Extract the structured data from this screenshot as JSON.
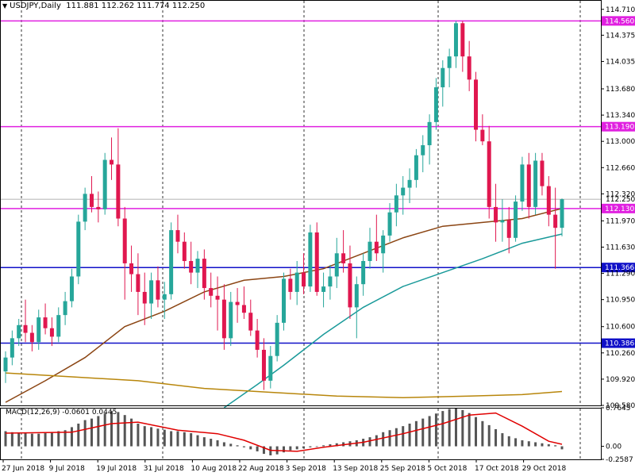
{
  "header": {
    "symbol": "USDJPY,Daily",
    "ohlc": "111.881 112.262 111.774 112.250"
  },
  "macd_label": "MACD(12,26,9) -0.0601 0.0445",
  "colors": {
    "bull": "#26a69a",
    "bear": "#e0174f",
    "ma_short": "#8b4513",
    "ma_mid": "#1a9a9a",
    "ma_long": "#b8860b",
    "macd_signal": "#e00000",
    "macd_hist": "#555555",
    "level_magenta": "#e020e0",
    "level_blue": "#1010c8"
  },
  "chart_data": {
    "type": "candlestick",
    "price_axis": {
      "ticks": [
        "114.710",
        "114.375",
        "114.035",
        "113.680",
        "113.340",
        "113.000",
        "112.660",
        "112.320",
        "111.970",
        "111.630",
        "111.290",
        "110.950",
        "110.600",
        "110.260",
        "109.920",
        "109.580"
      ],
      "range": [
        109.58,
        114.8
      ]
    },
    "x_labels": [
      "27 Jun 2018",
      "9 Jul 2018",
      "19 Jul 2018",
      "31 Jul 2018",
      "10 Aug 2018",
      "22 Aug 2018",
      "3 Sep 2018",
      "13 Sep 2018",
      "25 Sep 2018",
      "5 Oct 2018",
      "17 Oct 2018",
      "29 Oct 2018"
    ],
    "levels": [
      {
        "value": 114.56,
        "label": "114.560",
        "color": "magenta"
      },
      {
        "value": 113.19,
        "label": "113.190",
        "color": "magenta"
      },
      {
        "value": 112.13,
        "label": "112.130",
        "color": "magenta"
      },
      {
        "value": 111.366,
        "label": "111.366",
        "color": "blue"
      },
      {
        "value": 110.386,
        "label": "110.386",
        "color": "blue"
      }
    ],
    "current_price": {
      "value": 112.25,
      "label": "112.250"
    },
    "candles": [
      [
        110.02,
        110.28,
        109.87,
        110.2
      ],
      [
        110.2,
        110.55,
        110.1,
        110.45
      ],
      [
        110.45,
        110.7,
        110.35,
        110.62
      ],
      [
        110.62,
        110.95,
        110.4,
        110.52
      ],
      [
        110.52,
        110.62,
        110.28,
        110.4
      ],
      [
        110.4,
        110.82,
        110.3,
        110.72
      ],
      [
        110.72,
        110.9,
        110.5,
        110.58
      ],
      [
        110.58,
        110.72,
        110.35,
        110.47
      ],
      [
        110.47,
        110.85,
        110.4,
        110.75
      ],
      [
        110.75,
        111.05,
        110.62,
        110.93
      ],
      [
        110.93,
        111.35,
        110.85,
        111.25
      ],
      [
        111.25,
        112.05,
        111.15,
        111.96
      ],
      [
        111.96,
        112.4,
        111.85,
        112.32
      ],
      [
        112.32,
        112.55,
        112.08,
        112.15
      ],
      [
        112.15,
        112.35,
        111.95,
        112.12
      ],
      [
        112.12,
        112.85,
        112.05,
        112.76
      ],
      [
        112.76,
        113.05,
        112.5,
        112.7
      ],
      [
        112.7,
        113.17,
        111.9,
        112.0
      ],
      [
        112.0,
        112.15,
        110.95,
        111.42
      ],
      [
        111.42,
        111.65,
        111.05,
        111.28
      ],
      [
        111.28,
        111.55,
        110.75,
        111.05
      ],
      [
        111.05,
        111.3,
        110.62,
        110.9
      ],
      [
        110.9,
        111.3,
        110.7,
        111.2
      ],
      [
        111.2,
        111.38,
        110.85,
        110.95
      ],
      [
        110.95,
        111.18,
        110.7,
        111.02
      ],
      [
        111.02,
        111.95,
        110.95,
        111.85
      ],
      [
        111.85,
        112.05,
        111.55,
        111.7
      ],
      [
        111.7,
        111.82,
        111.35,
        111.45
      ],
      [
        111.45,
        111.7,
        111.15,
        111.3
      ],
      [
        111.3,
        111.58,
        111.1,
        111.48
      ],
      [
        111.48,
        111.6,
        110.95,
        111.1
      ],
      [
        111.1,
        111.3,
        110.85,
        111.0
      ],
      [
        111.0,
        111.25,
        110.55,
        110.95
      ],
      [
        110.95,
        111.15,
        110.3,
        110.45
      ],
      [
        110.45,
        111.05,
        110.35,
        110.92
      ],
      [
        110.92,
        111.1,
        110.65,
        110.88
      ],
      [
        110.88,
        111.12,
        110.7,
        110.78
      ],
      [
        110.78,
        110.95,
        110.48,
        110.55
      ],
      [
        110.55,
        110.7,
        110.2,
        110.3
      ],
      [
        110.3,
        110.45,
        109.78,
        109.9
      ],
      [
        109.9,
        110.35,
        109.8,
        110.22
      ],
      [
        110.22,
        110.75,
        110.15,
        110.65
      ],
      [
        110.65,
        111.3,
        110.55,
        111.22
      ],
      [
        111.22,
        111.35,
        110.95,
        111.05
      ],
      [
        111.05,
        111.45,
        110.88,
        111.3
      ],
      [
        111.3,
        111.55,
        111.02,
        111.12
      ],
      [
        111.12,
        111.92,
        111.05,
        111.82
      ],
      [
        111.82,
        111.95,
        111.0,
        111.05
      ],
      [
        111.05,
        111.3,
        110.85,
        111.12
      ],
      [
        111.12,
        111.4,
        110.95,
        111.25
      ],
      [
        111.25,
        111.75,
        111.1,
        111.55
      ],
      [
        111.55,
        111.85,
        111.3,
        111.42
      ],
      [
        111.42,
        111.65,
        110.7,
        110.85
      ],
      [
        110.85,
        111.25,
        110.45,
        111.15
      ],
      [
        111.15,
        111.55,
        111.0,
        111.45
      ],
      [
        111.45,
        111.88,
        111.35,
        111.7
      ],
      [
        111.7,
        112.05,
        111.45,
        111.55
      ],
      [
        111.55,
        111.85,
        111.3,
        111.78
      ],
      [
        111.78,
        112.2,
        111.7,
        112.08
      ],
      [
        112.08,
        112.45,
        111.9,
        112.3
      ],
      [
        112.3,
        112.55,
        112.05,
        112.4
      ],
      [
        112.4,
        112.65,
        112.2,
        112.5
      ],
      [
        112.5,
        112.9,
        112.4,
        112.82
      ],
      [
        112.82,
        113.08,
        112.6,
        112.95
      ],
      [
        112.95,
        113.35,
        112.7,
        113.25
      ],
      [
        113.25,
        113.82,
        113.15,
        113.7
      ],
      [
        113.7,
        114.05,
        113.45,
        113.95
      ],
      [
        113.95,
        114.2,
        113.7,
        114.1
      ],
      [
        114.1,
        114.56,
        113.95,
        114.53
      ],
      [
        114.53,
        114.56,
        113.9,
        114.1
      ],
      [
        114.1,
        114.3,
        113.65,
        113.8
      ],
      [
        113.8,
        113.9,
        113.0,
        113.15
      ],
      [
        113.15,
        113.35,
        112.95,
        113.0
      ],
      [
        113.0,
        113.2,
        112.0,
        112.15
      ],
      [
        112.15,
        112.45,
        111.7,
        111.95
      ],
      [
        111.95,
        112.25,
        111.7,
        111.98
      ],
      [
        111.98,
        112.15,
        111.55,
        111.75
      ],
      [
        111.75,
        112.3,
        111.7,
        112.22
      ],
      [
        112.22,
        112.8,
        112.1,
        112.7
      ],
      [
        112.7,
        112.85,
        112.0,
        112.15
      ],
      [
        112.15,
        112.85,
        112.05,
        112.75
      ],
      [
        112.75,
        112.85,
        112.3,
        112.42
      ],
      [
        112.42,
        112.55,
        111.9,
        112.05
      ],
      [
        112.05,
        112.4,
        111.35,
        111.88
      ],
      [
        111.88,
        112.26,
        111.77,
        112.25
      ]
    ],
    "moving_averages": [
      {
        "name": "MA short",
        "color": "brown",
        "points": [
          [
            0,
            109.62
          ],
          [
            6,
            109.9
          ],
          [
            12,
            110.2
          ],
          [
            18,
            110.6
          ],
          [
            24,
            110.8
          ],
          [
            30,
            111.05
          ],
          [
            36,
            111.2
          ],
          [
            42,
            111.25
          ],
          [
            48,
            111.35
          ],
          [
            54,
            111.55
          ],
          [
            60,
            111.75
          ],
          [
            66,
            111.9
          ],
          [
            72,
            111.95
          ],
          [
            78,
            112.0
          ],
          [
            84,
            112.13
          ]
        ]
      },
      {
        "name": "MA mid",
        "color": "teal",
        "points": [
          [
            33,
            109.55
          ],
          [
            38,
            109.85
          ],
          [
            42,
            110.1
          ],
          [
            48,
            110.5
          ],
          [
            54,
            110.85
          ],
          [
            60,
            111.12
          ],
          [
            66,
            111.3
          ],
          [
            72,
            111.48
          ],
          [
            78,
            111.68
          ],
          [
            84,
            111.8
          ]
        ]
      },
      {
        "name": "MA long",
        "color": "olive",
        "points": [
          [
            0,
            110.0
          ],
          [
            10,
            109.95
          ],
          [
            20,
            109.9
          ],
          [
            30,
            109.8
          ],
          [
            40,
            109.75
          ],
          [
            50,
            109.7
          ],
          [
            60,
            109.68
          ],
          [
            70,
            109.7
          ],
          [
            78,
            109.72
          ],
          [
            84,
            109.76
          ]
        ]
      }
    ],
    "macd": {
      "range": [
        -0.2587,
        0.7645
      ],
      "ticks": [
        "0.7645",
        "0.00",
        "-0.2587"
      ],
      "histogram": [
        0.3,
        0.28,
        0.26,
        0.26,
        0.25,
        0.25,
        0.26,
        0.28,
        0.3,
        0.32,
        0.38,
        0.45,
        0.52,
        0.55,
        0.6,
        0.65,
        0.7,
        0.68,
        0.62,
        0.55,
        0.45,
        0.4,
        0.38,
        0.35,
        0.33,
        0.3,
        0.3,
        0.28,
        0.26,
        0.22,
        0.18,
        0.15,
        0.12,
        0.08,
        0.05,
        0.02,
        -0.02,
        -0.06,
        -0.1,
        -0.15,
        -0.18,
        -0.16,
        -0.12,
        -0.08,
        -0.06,
        -0.04,
        -0.02,
        0.0,
        0.02,
        0.04,
        0.06,
        0.08,
        0.1,
        0.12,
        0.15,
        0.18,
        0.22,
        0.28,
        0.32,
        0.36,
        0.4,
        0.45,
        0.5,
        0.55,
        0.6,
        0.65,
        0.7,
        0.74,
        0.76,
        0.72,
        0.66,
        0.58,
        0.5,
        0.42,
        0.34,
        0.26,
        0.2,
        0.16,
        0.12,
        0.1,
        0.08,
        0.06,
        0.04,
        0.02,
        -0.06
      ],
      "signal": [
        [
          0,
          0.26
        ],
        [
          10,
          0.28
        ],
        [
          16,
          0.45
        ],
        [
          20,
          0.48
        ],
        [
          26,
          0.32
        ],
        [
          32,
          0.25
        ],
        [
          36,
          0.12
        ],
        [
          40,
          -0.08
        ],
        [
          44,
          -0.1
        ],
        [
          48,
          -0.02
        ],
        [
          54,
          0.08
        ],
        [
          60,
          0.25
        ],
        [
          66,
          0.45
        ],
        [
          70,
          0.62
        ],
        [
          74,
          0.66
        ],
        [
          78,
          0.4
        ],
        [
          82,
          0.1
        ],
        [
          84,
          0.04
        ]
      ]
    }
  }
}
